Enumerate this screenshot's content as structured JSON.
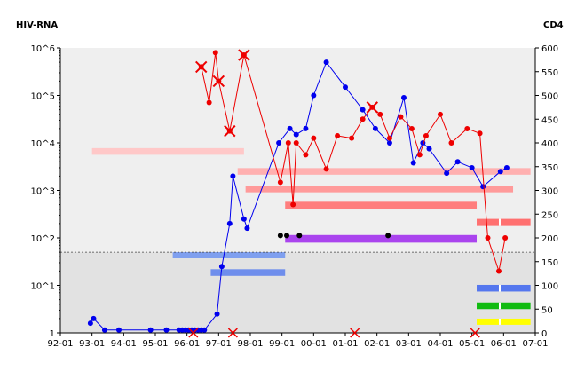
{
  "chart_data": {
    "type": "line",
    "left_axis_label": "HIV-RNA",
    "right_axis_label": "CD4",
    "x_ticks": [
      "92-01",
      "93-01",
      "94-01",
      "95-01",
      "96-01",
      "97-01",
      "98-01",
      "99-01",
      "00-01",
      "01-01",
      "02-01",
      "03-01",
      "04-01",
      "05-01",
      "06-01",
      "07-01"
    ],
    "y_left_ticks": [
      "1",
      "10^1",
      "10^2",
      "10^3",
      "10^4",
      "10^5",
      "10^6"
    ],
    "y_left_scale": "log",
    "y_left_range": [
      1,
      1000000
    ],
    "y_right_ticks": [
      0,
      50,
      100,
      150,
      200,
      250,
      300,
      350,
      400,
      450,
      500,
      550,
      600
    ],
    "y_right_range": [
      0,
      600
    ],
    "x_range": [
      1992.0,
      2007.0
    ],
    "grid": false,
    "threshold_line": {
      "axis": "left",
      "value": 50,
      "style": "dashed"
    },
    "series": [
      {
        "axis": "left",
        "color": "#0000ee",
        "marker": "circle",
        "points": [
          [
            1992.95,
            1.6
          ],
          [
            1993.05,
            2
          ],
          [
            1993.4,
            1.15
          ],
          [
            1993.85,
            1.15
          ],
          [
            1994.85,
            1.15
          ],
          [
            1995.35,
            1.15
          ],
          [
            1995.75,
            1.15
          ],
          [
            1995.85,
            1.15
          ],
          [
            1995.95,
            1.15
          ],
          [
            1996.05,
            1.15
          ],
          [
            1996.15,
            1.15
          ],
          [
            1996.25,
            1.15
          ],
          [
            1996.35,
            1.15
          ],
          [
            1996.45,
            1.15
          ],
          [
            1996.55,
            1.15
          ],
          [
            1996.95,
            2.5
          ],
          [
            1997.1,
            25
          ],
          [
            1997.35,
            200
          ],
          [
            1997.45,
            2000
          ],
          [
            1997.8,
            250
          ],
          [
            1997.9,
            160
          ],
          [
            1998.9,
            10000
          ],
          [
            1999.25,
            20000
          ],
          [
            1999.45,
            15000
          ],
          [
            1999.75,
            20000
          ],
          [
            2000.0,
            100000
          ],
          [
            2000.4,
            500000
          ],
          [
            2001.0,
            150000
          ],
          [
            2001.55,
            50000
          ],
          [
            2001.95,
            20000
          ],
          [
            2002.4,
            10000
          ],
          [
            2002.85,
            90000
          ],
          [
            2003.15,
            3800
          ],
          [
            2003.45,
            10000
          ],
          [
            2003.65,
            7500
          ],
          [
            2004.2,
            2300
          ],
          [
            2004.55,
            4000
          ],
          [
            2005.0,
            3000
          ],
          [
            2005.35,
            1200
          ],
          [
            2005.9,
            2500
          ],
          [
            2006.1,
            3000
          ]
        ]
      },
      {
        "axis": "right",
        "color": "#ee0000",
        "marker": "circle",
        "points": [
          [
            1996.45,
            560
          ],
          [
            1996.7,
            485
          ],
          [
            1996.9,
            590
          ],
          [
            1997.0,
            530
          ],
          [
            1997.35,
            425
          ],
          [
            1997.8,
            585
          ],
          [
            1998.95,
            317
          ],
          [
            1999.2,
            400
          ],
          [
            1999.35,
            270
          ],
          [
            1999.45,
            400
          ],
          [
            1999.75,
            375
          ],
          [
            2000.0,
            410
          ],
          [
            2000.4,
            345
          ],
          [
            2000.75,
            415
          ],
          [
            2001.2,
            410
          ],
          [
            2001.55,
            450
          ],
          [
            2001.85,
            475
          ],
          [
            2002.1,
            460
          ],
          [
            2002.4,
            410
          ],
          [
            2002.75,
            455
          ],
          [
            2003.1,
            430
          ],
          [
            2003.35,
            375
          ],
          [
            2003.55,
            415
          ],
          [
            2004.0,
            460
          ],
          [
            2004.35,
            400
          ],
          [
            2004.85,
            430
          ],
          [
            2005.25,
            420
          ],
          [
            2005.5,
            200
          ],
          [
            2005.85,
            130
          ],
          [
            2006.05,
            200
          ]
        ]
      }
    ],
    "cross_markers_red_series": [
      1996.45,
      1997.0,
      1997.35,
      1997.8,
      2001.95
    ],
    "cross_markers_bottom": [
      1996.2,
      1997.45,
      2001.3,
      2005.1
    ],
    "black_markers": [
      {
        "x": 1998.95,
        "y_right": 205
      },
      {
        "x": 1999.15,
        "y_right": 205
      },
      {
        "x": 1999.55,
        "y_right": 205
      },
      {
        "x": 2002.35,
        "y_right": 205
      }
    ],
    "bands": [
      {
        "x0": 1993.0,
        "x1": 1997.8,
        "y0": 375,
        "y1": 389,
        "color": "#ffc8c8"
      },
      {
        "x0": 1997.6,
        "x1": 2006.85,
        "y0": 333,
        "y1": 347,
        "color": "#ffb0b0"
      },
      {
        "x0": 1997.85,
        "x1": 2006.3,
        "y0": 296,
        "y1": 310,
        "color": "#ff9a9a"
      },
      {
        "x0": 1999.1,
        "x1": 2005.15,
        "y0": 260,
        "y1": 276,
        "color": "#ff7e7e"
      },
      {
        "x0": 2005.15,
        "x1": 2006.85,
        "y0": 225,
        "y1": 240,
        "color": "#ff7070"
      },
      {
        "x0": 1999.1,
        "x1": 2005.15,
        "y0": 190,
        "y1": 206,
        "color": "#aa44ee"
      },
      {
        "x0": 1995.55,
        "x1": 1999.1,
        "y0": 157,
        "y1": 170,
        "color": "#7f9fef"
      },
      {
        "x0": 1996.75,
        "x1": 1999.1,
        "y0": 120,
        "y1": 134,
        "color": "#6f8eec"
      },
      {
        "x0": 2005.15,
        "x1": 2006.85,
        "y0": 87,
        "y1": 101,
        "color": "#5577ee"
      },
      {
        "x0": 2005.15,
        "x1": 2006.85,
        "y0": 50,
        "y1": 64,
        "color": "#11bb11"
      },
      {
        "x0": 2005.15,
        "x1": 2006.85,
        "y0": 17,
        "y1": 30,
        "color": "#ffff00"
      }
    ]
  }
}
